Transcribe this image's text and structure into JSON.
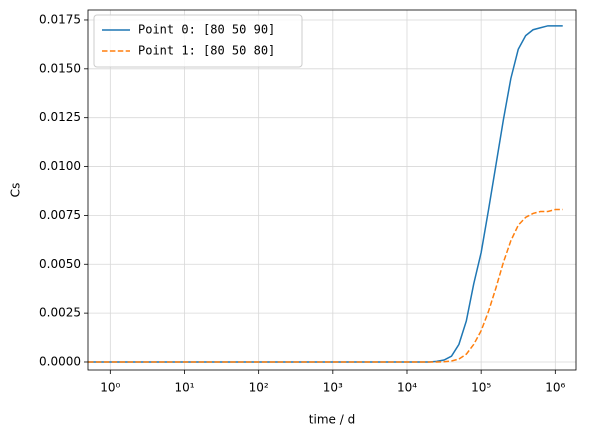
{
  "chart_data": {
    "type": "line",
    "xlabel": "time / d",
    "ylabel": "Cs",
    "xscale": "log",
    "grid": true,
    "legend": "upper left",
    "xlim": [
      0.5,
      1900000
    ],
    "ylim": [
      -0.00041,
      0.01801
    ],
    "xticks": [
      {
        "value": 1,
        "label": "10⁰"
      },
      {
        "value": 10,
        "label": "10¹"
      },
      {
        "value": 100,
        "label": "10²"
      },
      {
        "value": 1000,
        "label": "10³"
      },
      {
        "value": 10000,
        "label": "10⁴"
      },
      {
        "value": 100000,
        "label": "10⁵"
      },
      {
        "value": 1000000,
        "label": "10⁶"
      }
    ],
    "yticks": [
      {
        "value": 0,
        "label": "0.0000"
      },
      {
        "value": 0.0025,
        "label": "0.0025"
      },
      {
        "value": 0.005,
        "label": "0.0050"
      },
      {
        "value": 0.0075,
        "label": "0.0075"
      },
      {
        "value": 0.01,
        "label": "0.0100"
      },
      {
        "value": 0.0125,
        "label": "0.0125"
      },
      {
        "value": 0.015,
        "label": "0.0150"
      },
      {
        "value": 0.0175,
        "label": "0.0175"
      }
    ],
    "x": [
      0.5,
      1,
      10,
      100,
      1000,
      10000,
      19953,
      25119,
      31623,
      39811,
      50119,
      63096,
      79433,
      100000,
      125893,
      158489,
      199526,
      251189,
      316228,
      398107,
      501187,
      630957,
      794328,
      1000000,
      1258925
    ],
    "series": [
      {
        "name": "Point 0: [80 50 90]",
        "color": "#1f77b4",
        "linestyle": "solid",
        "values": [
          0,
          0,
          0,
          0,
          0,
          0,
          0,
          3e-05,
          0.0001,
          0.0003,
          0.0009,
          0.0021,
          0.004,
          0.0056,
          0.0078,
          0.0101,
          0.0124,
          0.0145,
          0.016,
          0.0167,
          0.017,
          0.0171,
          0.0172,
          0.0172,
          0.0172
        ]
      },
      {
        "name": "Point 1: [80 50 80]",
        "color": "#ff7f0e",
        "linestyle": "dashed",
        "values": [
          0,
          0,
          0,
          0,
          0,
          0,
          0,
          0,
          1e-05,
          5e-05,
          0.00015,
          0.0004,
          0.0009,
          0.0016,
          0.0026,
          0.0038,
          0.0051,
          0.0062,
          0.007,
          0.0074,
          0.0076,
          0.0077,
          0.0077,
          0.0078,
          0.0078
        ]
      }
    ]
  }
}
